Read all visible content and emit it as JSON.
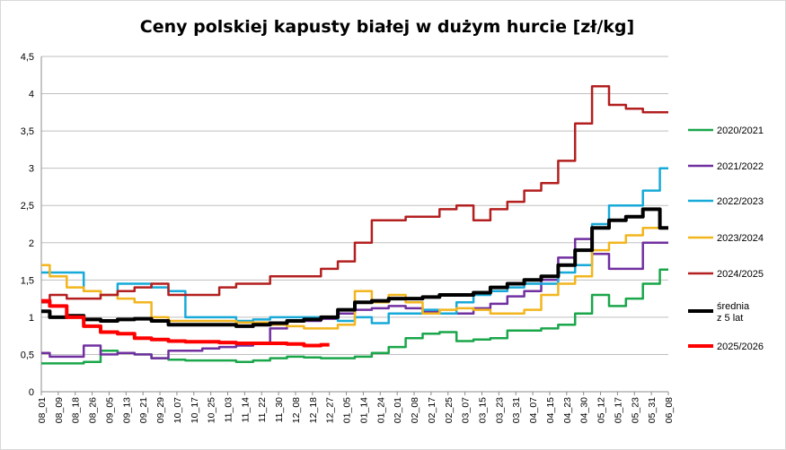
{
  "chart_data": {
    "type": "line",
    "title": "Ceny polskiej kapusty białej w dużym hurcie [zł/kg]",
    "ylim": [
      0,
      4.5
    ],
    "y_ticks": [
      "0",
      "0,5",
      "1",
      "1,5",
      "2",
      "2,5",
      "3",
      "3,5",
      "4",
      "4,5"
    ],
    "grid": "horizontal",
    "legend_position": "right",
    "x_tick_labels": [
      "08_01",
      "08_09",
      "08_18",
      "08_26",
      "09_05",
      "09_13",
      "09_21",
      "09_29",
      "10_07",
      "10_17",
      "10_25",
      "11_03",
      "11_14",
      "11_22",
      "11_30",
      "12_08",
      "12_18",
      "12_27",
      "01_05",
      "01_14",
      "01_24",
      "02_01",
      "02_08",
      "02_17",
      "02_25",
      "03_07",
      "03_15",
      "03_23",
      "03_31",
      "04_07",
      "04_15",
      "04_23",
      "04_30",
      "05_12",
      "05_17",
      "05_23",
      "05_31",
      "06_08"
    ],
    "x": [
      0,
      2,
      4,
      6,
      8,
      10,
      12,
      14,
      16,
      18,
      20,
      22,
      24,
      26,
      28,
      30,
      32,
      34,
      36,
      38,
      40,
      42,
      44,
      46,
      48,
      50,
      52,
      54,
      56,
      58,
      60,
      62,
      64,
      66,
      68,
      70,
      72,
      74
    ],
    "series": [
      {
        "name": "2020/2021",
        "color": "#1aa64a",
        "width": 2.5,
        "values": [
          0.38,
          0.38,
          0.38,
          0.4,
          0.55,
          0.52,
          0.5,
          0.45,
          0.43,
          0.42,
          0.42,
          0.42,
          0.4,
          0.42,
          0.45,
          0.47,
          0.46,
          0.45,
          0.45,
          0.47,
          0.52,
          0.6,
          0.72,
          0.78,
          0.8,
          0.68,
          0.7,
          0.72,
          0.82,
          0.82,
          0.85,
          0.9,
          1.05,
          1.3,
          1.15,
          1.25,
          1.45,
          1.64
        ]
      },
      {
        "name": "2021/2022",
        "color": "#7030a0",
        "width": 2.5,
        "values": [
          0.52,
          0.47,
          0.47,
          0.62,
          0.5,
          0.52,
          0.5,
          0.45,
          0.55,
          0.55,
          0.58,
          0.6,
          0.62,
          0.64,
          0.85,
          0.95,
          0.95,
          0.98,
          1.05,
          1.1,
          1.12,
          1.15,
          1.12,
          1.08,
          1.05,
          1.05,
          1.12,
          1.18,
          1.28,
          1.35,
          1.5,
          1.8,
          2.05,
          1.85,
          1.65,
          1.65,
          2.0,
          2.0
        ]
      },
      {
        "name": "2022/2023",
        "color": "#17a9d8",
        "width": 2.5,
        "values": [
          1.6,
          1.6,
          1.6,
          1.35,
          1.3,
          1.45,
          1.45,
          1.4,
          1.35,
          1.0,
          1.0,
          1.0,
          0.95,
          0.97,
          1.0,
          1.0,
          1.0,
          1.0,
          0.95,
          1.0,
          0.92,
          1.05,
          1.05,
          1.1,
          1.05,
          1.2,
          1.3,
          1.35,
          1.4,
          1.45,
          1.45,
          1.6,
          1.7,
          2.25,
          2.5,
          2.5,
          2.7,
          3.0
        ]
      },
      {
        "name": "2023/2024",
        "color": "#f2b51d",
        "width": 2.5,
        "values": [
          1.7,
          1.55,
          1.4,
          1.35,
          1.3,
          1.25,
          1.2,
          1.0,
          0.95,
          0.95,
          0.95,
          0.95,
          0.93,
          0.93,
          0.9,
          0.88,
          0.85,
          0.85,
          0.9,
          1.35,
          1.2,
          1.3,
          1.2,
          1.05,
          1.1,
          1.12,
          1.1,
          1.05,
          1.05,
          1.1,
          1.3,
          1.45,
          1.55,
          1.9,
          2.0,
          2.1,
          2.2,
          2.2
        ]
      },
      {
        "name": "2024/2025",
        "color": "#b31f1f",
        "width": 2.5,
        "values": [
          1.2,
          1.3,
          1.25,
          1.25,
          1.3,
          1.35,
          1.4,
          1.45,
          1.3,
          1.3,
          1.3,
          1.4,
          1.45,
          1.45,
          1.55,
          1.55,
          1.55,
          1.65,
          1.75,
          2.0,
          2.3,
          2.3,
          2.35,
          2.35,
          2.45,
          2.5,
          2.3,
          2.45,
          2.55,
          2.7,
          2.8,
          3.1,
          3.6,
          4.1,
          3.85,
          3.8,
          3.75,
          3.75
        ]
      },
      {
        "name": "średnia\nz 5 lat",
        "color": "#000000",
        "width": 4,
        "values": [
          1.08,
          1.0,
          1.02,
          0.97,
          0.95,
          0.97,
          0.98,
          0.95,
          0.9,
          0.9,
          0.9,
          0.9,
          0.88,
          0.9,
          0.92,
          0.95,
          0.97,
          1.0,
          1.1,
          1.2,
          1.22,
          1.25,
          1.25,
          1.27,
          1.3,
          1.3,
          1.33,
          1.4,
          1.45,
          1.5,
          1.55,
          1.7,
          1.9,
          2.2,
          2.3,
          2.35,
          2.45,
          2.2
        ]
      },
      {
        "name": "2025/2026",
        "color": "#ff0000",
        "width": 4,
        "values": [
          1.22,
          1.15,
          1.0,
          0.88,
          0.8,
          0.78,
          0.72,
          0.7,
          0.68,
          0.67,
          0.67,
          0.66,
          0.65,
          0.65,
          0.65,
          0.64,
          0.62,
          0.63,
          null,
          null,
          null,
          null,
          null,
          null,
          null,
          null,
          null,
          null,
          null,
          null,
          null,
          null,
          null,
          null,
          null,
          null,
          null,
          null
        ]
      }
    ]
  }
}
